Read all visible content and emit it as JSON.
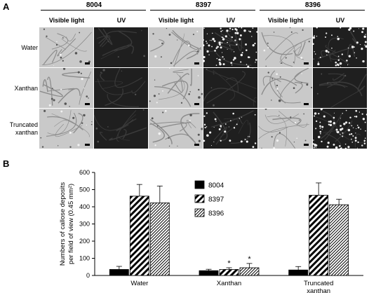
{
  "panel_a": {
    "letter": "A",
    "strains": [
      "8004",
      "8397",
      "8396"
    ],
    "columns": [
      "Visible light",
      "UV",
      "Visible light",
      "UV",
      "Visible light",
      "UV"
    ],
    "rows": [
      "Water",
      "Xanthan",
      "Truncated\nxanthan"
    ],
    "tile_brightness": [
      [
        "bright",
        "dark",
        "bright",
        "spots-dense",
        "bright",
        "spots-medium"
      ],
      [
        "bright",
        "dark",
        "bright",
        "dark",
        "bright",
        "dark"
      ],
      [
        "bright",
        "dark",
        "bright",
        "spots-light",
        "bright",
        "spots-dense"
      ]
    ]
  },
  "panel_b": {
    "letter": "B"
  },
  "chart_data": {
    "type": "bar",
    "ylabel": "Numbers of callose deposits\nper field of view (0.45 mm²)",
    "ylim": [
      0,
      600
    ],
    "yticks": [
      "0",
      "100",
      "200",
      "300",
      "400",
      "500",
      "600"
    ],
    "categories": [
      "Water",
      "Xanthan",
      "Truncated\nxanthan"
    ],
    "legend_position": "top-center",
    "series": [
      {
        "name": "8004",
        "pattern": "solid",
        "values": [
          35,
          28,
          32
        ],
        "errors": [
          18,
          8,
          20
        ]
      },
      {
        "name": "8397",
        "pattern": "diagonal-wide",
        "values": [
          462,
          35,
          467
        ],
        "errors": [
          68,
          10,
          72
        ]
      },
      {
        "name": "8396",
        "pattern": "diagonal-fine",
        "values": [
          423,
          45,
          412
        ],
        "errors": [
          98,
          25,
          32
        ]
      }
    ],
    "annotations": [
      {
        "series": "8397",
        "category": "Xanthan",
        "text": "*"
      },
      {
        "series": "8396",
        "category": "Xanthan",
        "text": "*"
      }
    ],
    "colors": {
      "bar_fill": "#000000",
      "pattern_bg": "#ffffff"
    }
  }
}
